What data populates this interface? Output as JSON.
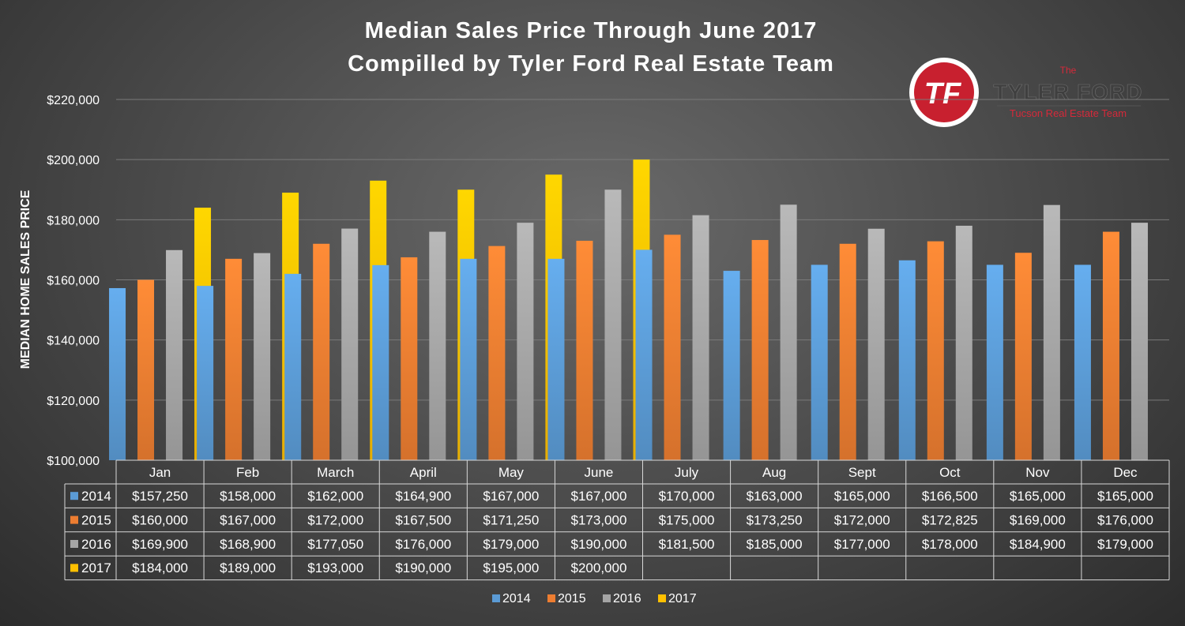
{
  "chart_data": {
    "type": "bar",
    "title": [
      "Median Sales Price Through June 2017",
      "Compilled by Tyler Ford Real Estate Team"
    ],
    "xlabel": "",
    "ylabel": "MEDIAN HOME SALES PRICE",
    "ylim": [
      100000,
      220000
    ],
    "yticks": [
      100000,
      120000,
      140000,
      160000,
      180000,
      200000,
      220000
    ],
    "ytick_labels": [
      "$100,000",
      "$120,000",
      "$140,000",
      "$160,000",
      "$180,000",
      "$200,000",
      "$220,000"
    ],
    "grid": true,
    "legend_position": "bottom",
    "data_table": true,
    "categories": [
      "Jan",
      "Feb",
      "March",
      "April",
      "May",
      "June",
      "July",
      "Aug",
      "Sept",
      "Oct",
      "Nov",
      "Dec"
    ],
    "series": [
      {
        "name": "2014",
        "color": "#5b9bd5",
        "values": [
          157250,
          158000,
          162000,
          164900,
          167000,
          167000,
          170000,
          163000,
          165000,
          166500,
          165000,
          165000
        ],
        "labels": [
          "$157,250",
          "$158,000",
          "$162,000",
          "$164,900",
          "$167,000",
          "$167,000",
          "$170,000",
          "$163,000",
          "$165,000",
          "$166,500",
          "$165,000",
          "$165,000"
        ]
      },
      {
        "name": "2015",
        "color": "#ed7d31",
        "values": [
          160000,
          167000,
          172000,
          167500,
          171250,
          173000,
          175000,
          173250,
          172000,
          172825,
          169000,
          176000
        ],
        "labels": [
          "$160,000",
          "$167,000",
          "$172,000",
          "$167,500",
          "$171,250",
          "$173,000",
          "$175,000",
          "$173,250",
          "$172,000",
          "$172,825",
          "$169,000",
          "$176,000"
        ]
      },
      {
        "name": "2016",
        "color": "#a5a5a5",
        "values": [
          169900,
          168900,
          177050,
          176000,
          179000,
          190000,
          181500,
          185000,
          177000,
          178000,
          184900,
          179000
        ],
        "labels": [
          "$169,900",
          "$168,900",
          "$177,050",
          "$176,000",
          "$179,000",
          "$190,000",
          "$181,500",
          "$185,000",
          "$177,000",
          "$178,000",
          "$184,900",
          "$179,000"
        ]
      },
      {
        "name": "2017",
        "color": "#ffc000",
        "values": [
          184000,
          189000,
          193000,
          190000,
          195000,
          200000,
          null,
          null,
          null,
          null,
          null,
          null
        ],
        "labels": [
          "$184,000",
          "$189,000",
          "$193,000",
          "$190,000",
          "$195,000",
          "$200,000",
          "",
          "",
          "",
          "",
          "",
          ""
        ]
      }
    ]
  },
  "logo": {
    "monogram": "TF",
    "the": "The",
    "name": "TYLER FORD",
    "subtitle": "Tucson Real Estate Team",
    "accent_color": "#d6293a"
  }
}
